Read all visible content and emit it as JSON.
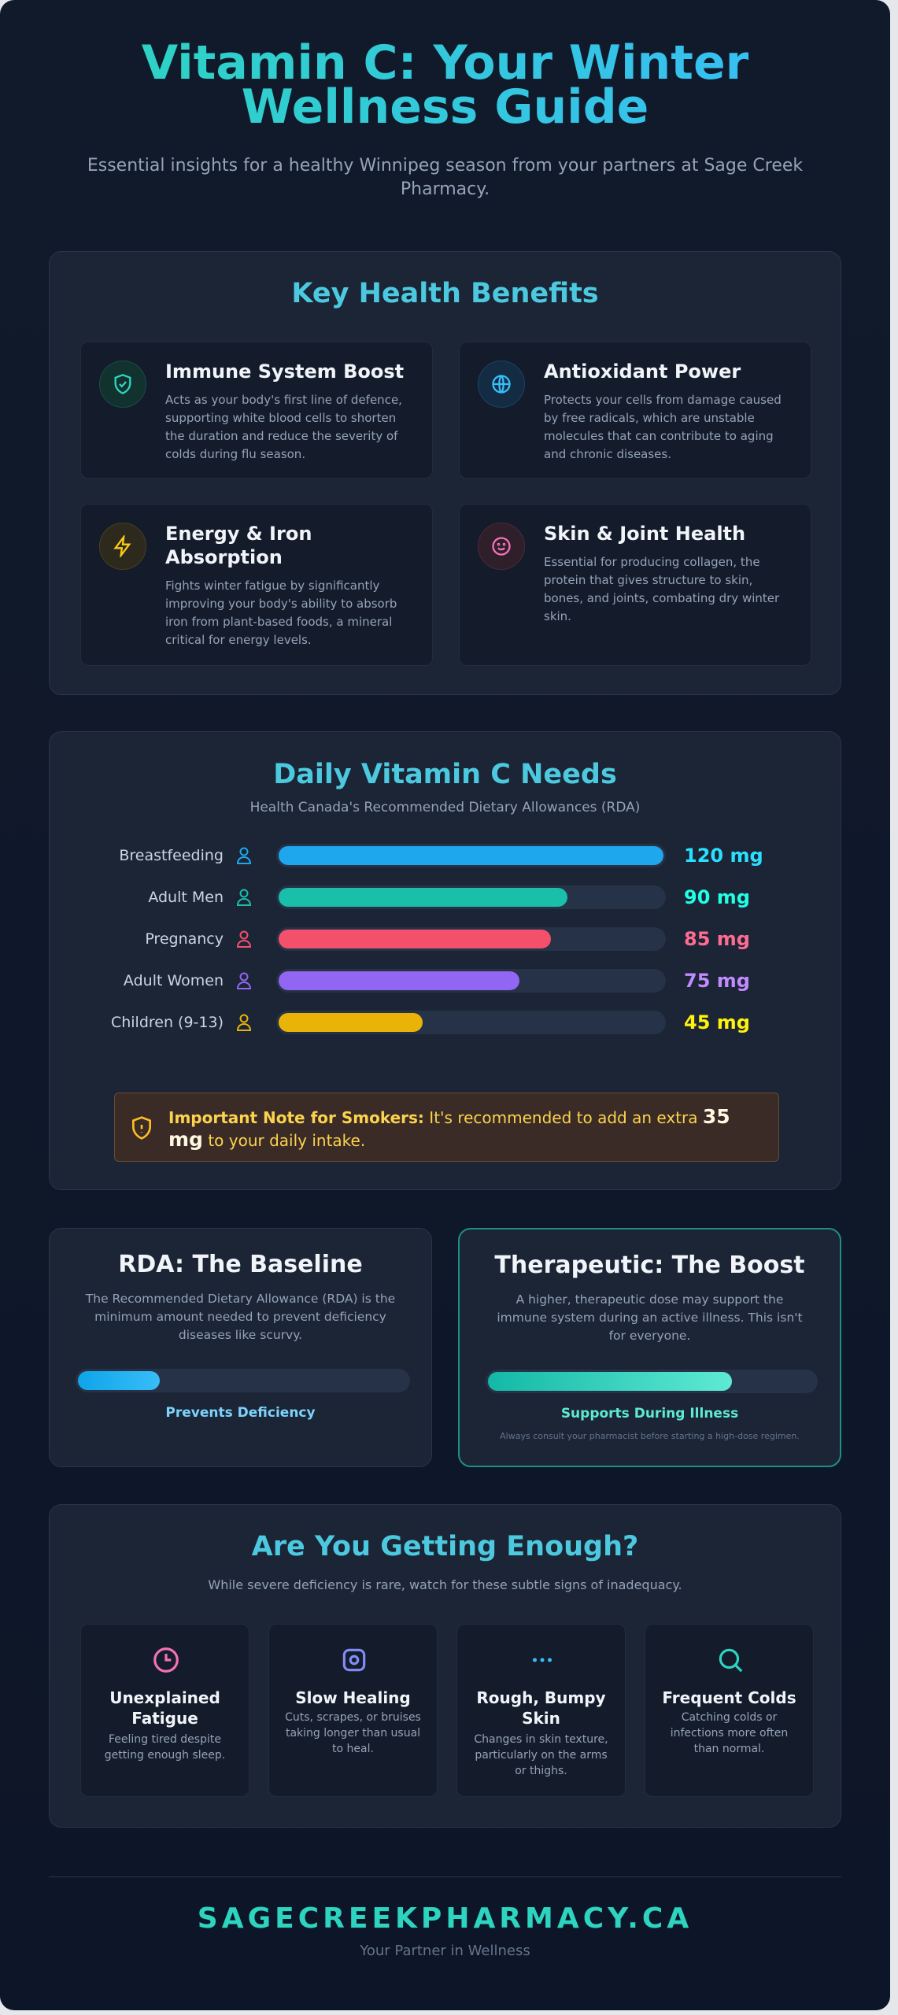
{
  "header": {
    "title": "Vitamin C: Your Winter Wellness Guide",
    "subtitle": "Essential insights for a healthy Winnipeg season from your partners at Sage Creek Pharmacy."
  },
  "benefits": {
    "heading": "Key Health Benefits",
    "items": [
      {
        "title": "Immune System Boost",
        "text": "Acts as your body's first line of defence, supporting white blood cells to shorten the duration and reduce the severity of colds during flu season."
      },
      {
        "title": "Antioxidant Power",
        "text": "Protects your cells from damage caused by free radicals, which are unstable molecules that can contribute to aging and chronic diseases."
      },
      {
        "title": "Energy & Iron Absorption",
        "text": "Fights winter fatigue by significantly improving your body's ability to absorb iron from plant-based foods, a mineral critical for energy levels."
      },
      {
        "title": "Skin & Joint Health",
        "text": "Essential for producing collagen, the protein that gives structure to skin, bones, and joints, combating dry winter skin."
      }
    ]
  },
  "needs": {
    "heading": "Daily Vitamin C Needs",
    "subtitle": "Health Canada's Recommended Dietary Allowances (RDA)",
    "categories": [
      "Breastfeeding",
      "Adult Men",
      "Pregnancy",
      "Adult Women",
      "Children (9-13)"
    ],
    "values": [
      120,
      90,
      85,
      75,
      45
    ],
    "value_labels": [
      "120 mg",
      "90 mg",
      "85 mg",
      "75 mg",
      "45 mg"
    ],
    "colors": [
      "#1ea7ec",
      "#19bfa9",
      "#f4506c",
      "#9066f2",
      "#eab308"
    ],
    "xlim": [
      0,
      120
    ],
    "note": {
      "label": "Important Note for Smokers:",
      "text": "It's recommended to add an extra",
      "amount": "35 mg",
      "text_end": "to your daily intake."
    }
  },
  "doses": [
    {
      "title": "RDA: The Baseline",
      "text": "The Recommended Dietary Allowance (RDA) is the minimum amount needed to prevent deficiency diseases like scurvy.",
      "caption": "Prevents Deficiency"
    },
    {
      "title": "Therapeutic: The Boost",
      "text": "A higher, therapeutic dose may support the immune system during an active illness. This isn't for everyone.",
      "caption": "Supports During Illness",
      "footnote": "Always consult your pharmacist before starting a high-dose regimen."
    }
  ],
  "signs": {
    "heading": "Are You Getting Enough?",
    "subtitle": "While severe deficiency is rare, watch for these subtle signs of inadequacy.",
    "items": [
      {
        "title": "Unexplained Fatigue",
        "text": "Feeling tired despite getting enough sleep."
      },
      {
        "title": "Slow Healing",
        "text": "Cuts, scrapes, or bruises taking longer than usual to heal."
      },
      {
        "title": "Rough, Bumpy Skin",
        "text": "Changes in skin texture, particularly on the arms or thighs."
      },
      {
        "title": "Frequent Colds",
        "text": "Catching colds or infections more often than normal."
      }
    ]
  },
  "footer": {
    "brand": "SAGECREEKPHARMACY.CA",
    "tagline": "Your Partner in Wellness"
  }
}
